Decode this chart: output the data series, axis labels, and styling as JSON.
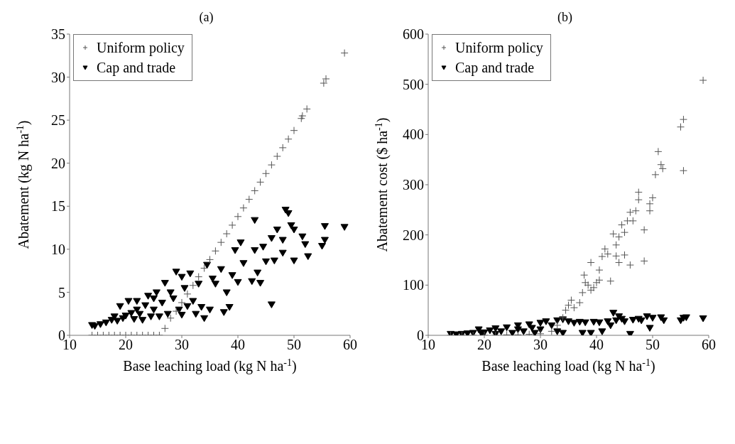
{
  "chart_data": [
    {
      "type": "scatter",
      "title": "(a)",
      "xlabel": "Base leaching load (kg N ha$^{-1}$)",
      "ylabel": "Abatement (kg N ha$^{-1}$)",
      "xlim": [
        10,
        60
      ],
      "xticks": [
        10,
        20,
        30,
        40,
        50,
        60
      ],
      "ylim": [
        0,
        35
      ],
      "yticks": [
        0,
        5,
        10,
        15,
        20,
        25,
        30,
        35
      ],
      "grid": false,
      "legend": "top left",
      "series": [
        {
          "name": "Uniform policy",
          "color": "#555555",
          "marker": "cross",
          "x": [
            14,
            15,
            16,
            17,
            18,
            19,
            20,
            21,
            22,
            23,
            24,
            25,
            26,
            27,
            28,
            29,
            30,
            31,
            32,
            33,
            34,
            35,
            36,
            37,
            38,
            39,
            40,
            41,
            42,
            43,
            44,
            45,
            46,
            47,
            48,
            49,
            50,
            51.3,
            51.5,
            52.3,
            55.3,
            55.7,
            59
          ],
          "values": [
            0,
            0,
            0,
            0,
            0,
            0,
            0,
            0,
            0,
            0,
            0,
            0,
            0,
            0.8,
            2.0,
            2.8,
            3.8,
            4.8,
            5.8,
            6.8,
            7.8,
            8.8,
            9.8,
            10.8,
            11.8,
            12.8,
            13.8,
            14.8,
            15.8,
            16.8,
            17.8,
            18.8,
            19.8,
            20.8,
            21.8,
            22.8,
            23.8,
            25.2,
            25.5,
            26.3,
            29.3,
            29.8,
            32.8
          ]
        },
        {
          "name": "Cap and trade",
          "color": "#000000",
          "marker": "triangle",
          "x": [
            14,
            14.5,
            15.5,
            16.5,
            17.5,
            18,
            18.5,
            19,
            19.5,
            20,
            20.5,
            21,
            21.5,
            22,
            22,
            22.5,
            23,
            23.5,
            24,
            24.5,
            25,
            25,
            25.5,
            26,
            26.5,
            27,
            27.5,
            28,
            28.5,
            29,
            29.5,
            30,
            30,
            30.5,
            31,
            31.5,
            32,
            32.5,
            33,
            33.5,
            34,
            34.5,
            35,
            35.5,
            36,
            37,
            37.5,
            38,
            38.5,
            39,
            39.5,
            40,
            40.5,
            41,
            42.5,
            43,
            43,
            43.5,
            44,
            44.5,
            45,
            46,
            46,
            46.5,
            47,
            48,
            48,
            48.5,
            49,
            49.5,
            50,
            50,
            51.5,
            52,
            52.5,
            55,
            55.5,
            55.5,
            59
          ],
          "values": [
            1.2,
            1.1,
            1.3,
            1.5,
            1.8,
            2.2,
            1.7,
            3.4,
            2.0,
            2.3,
            4.0,
            2.6,
            1.9,
            3.0,
            4.0,
            2.5,
            1.8,
            3.5,
            4.6,
            2.2,
            4.3,
            3.0,
            5.0,
            2.2,
            3.8,
            6.1,
            2.5,
            5.0,
            4.3,
            7.4,
            3.0,
            6.8,
            2.4,
            5.5,
            3.4,
            7.2,
            4.0,
            2.5,
            6.0,
            3.3,
            2.0,
            8.2,
            3.0,
            6.6,
            6.0,
            7.7,
            2.7,
            5.0,
            3.3,
            7.0,
            9.9,
            6.2,
            10.8,
            8.4,
            6.3,
            9.9,
            13.4,
            7.3,
            6.1,
            10.3,
            8.6,
            11.3,
            3.6,
            8.7,
            12.3,
            11.1,
            9.6,
            14.6,
            14.2,
            12.8,
            8.7,
            12.3,
            11.5,
            10.6,
            9.2,
            10.4,
            11.1,
            12.7,
            12.6
          ]
        }
      ]
    },
    {
      "type": "scatter",
      "title": "(b)",
      "xlabel": "Base leaching load (kg N ha$^{-1}$)",
      "ylabel": "Abatement cost ($ ha$^{-1}$)",
      "xlim": [
        10,
        60
      ],
      "xticks": [
        10,
        20,
        30,
        40,
        50,
        60
      ],
      "ylim": [
        0,
        600
      ],
      "yticks": [
        0,
        100,
        200,
        300,
        400,
        500,
        600
      ],
      "grid": false,
      "legend": "top left",
      "series": [
        {
          "name": "Uniform policy",
          "color": "#555555",
          "marker": "cross",
          "x": [
            14,
            16,
            18,
            20,
            22,
            24,
            26,
            28,
            30,
            32,
            33,
            34,
            34.5,
            35,
            35.5,
            36,
            37,
            37.5,
            37.8,
            38,
            38.5,
            39,
            39,
            39.5,
            40,
            40.5,
            40.5,
            41,
            41.5,
            42,
            42.5,
            43,
            43.5,
            43.5,
            44,
            44,
            44.5,
            45,
            45,
            45.5,
            46,
            46,
            46.5,
            47,
            47.5,
            47.5,
            48.5,
            48.5,
            49.5,
            49.5,
            50,
            50.5,
            51,
            51.5,
            51.8,
            55,
            55.5,
            55.5,
            59
          ],
          "values": [
            0,
            0,
            0,
            0,
            0,
            1,
            1,
            2,
            3,
            8,
            20,
            35,
            50,
            60,
            70,
            55,
            65,
            85,
            120,
            105,
            100,
            145,
            90,
            95,
            105,
            130,
            110,
            157,
            172,
            162,
            108,
            202,
            180,
            158,
            196,
            145,
            220,
            160,
            205,
            228,
            245,
            140,
            228,
            248,
            285,
            270,
            210,
            148,
            262,
            248,
            274,
            320,
            366,
            340,
            332,
            415,
            430,
            328,
            508
          ]
        },
        {
          "name": "Cap and trade",
          "color": "#000000",
          "marker": "triangle",
          "x": [
            14,
            15,
            16,
            17,
            18,
            19,
            19.5,
            20,
            21,
            22,
            22,
            23,
            24,
            25,
            26,
            26,
            27,
            28,
            28.5,
            29,
            30,
            30,
            31,
            32,
            33,
            33,
            34,
            34,
            35,
            36,
            37,
            37.5,
            38,
            39,
            39.5,
            40.5,
            41,
            42,
            42.5,
            43,
            43.5,
            44,
            44.5,
            45,
            46,
            46.5,
            47.5,
            48,
            49,
            49.5,
            50,
            51.5,
            52,
            55,
            55.5,
            56,
            59
          ],
          "values": [
            3,
            2,
            3,
            4,
            5,
            12,
            4,
            6,
            10,
            14,
            3,
            8,
            16,
            5,
            12,
            20,
            8,
            22,
            15,
            5,
            25,
            12,
            28,
            20,
            30,
            8,
            32,
            5,
            28,
            25,
            27,
            5,
            26,
            5,
            27,
            26,
            8,
            28,
            20,
            45,
            30,
            38,
            33,
            28,
            3,
            31,
            33,
            30,
            38,
            15,
            35,
            36,
            30,
            30,
            35,
            36,
            34
          ]
        }
      ]
    }
  ]
}
